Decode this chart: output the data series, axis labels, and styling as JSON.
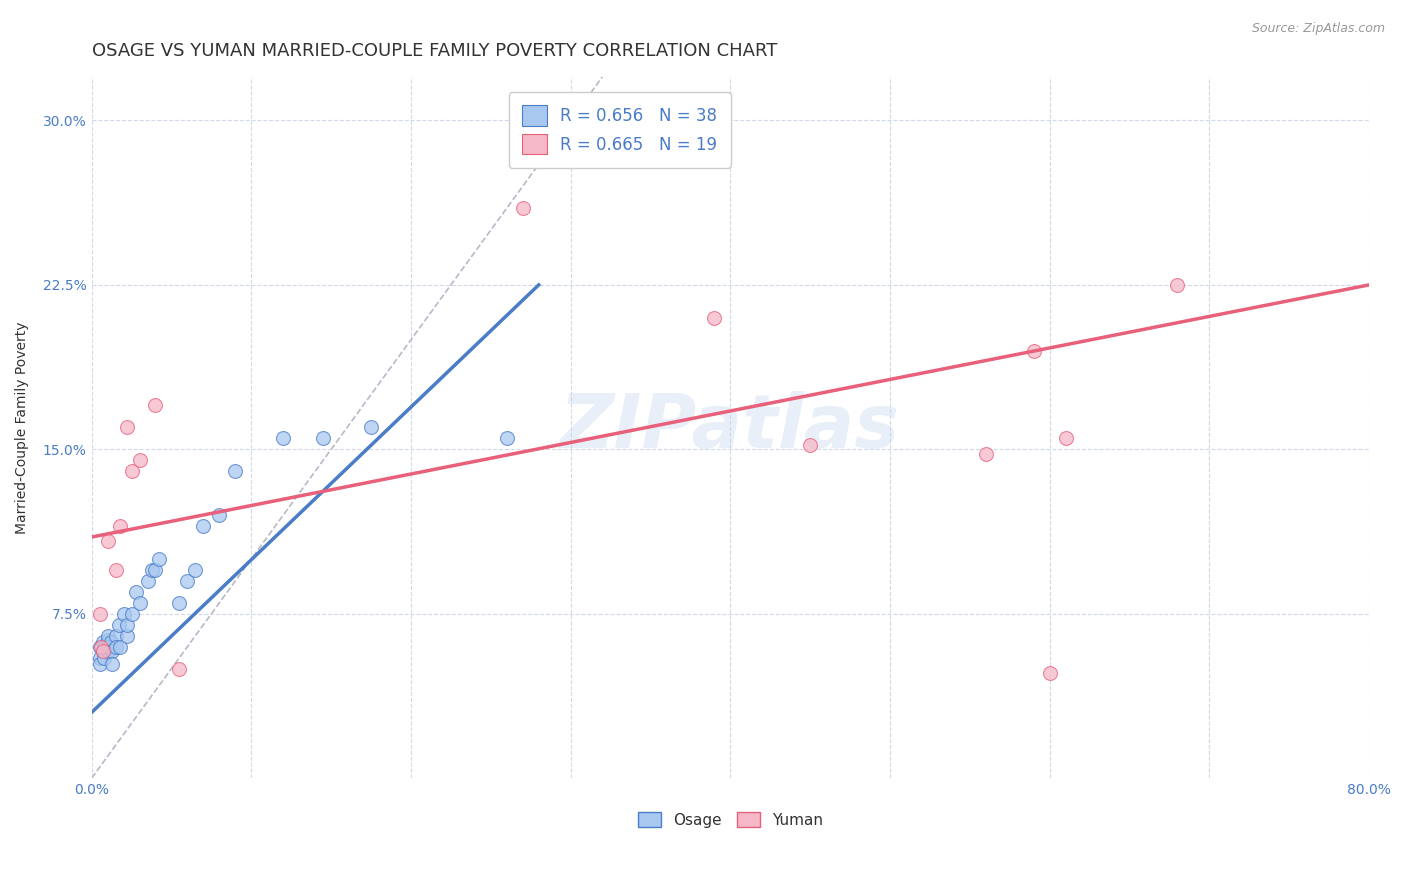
{
  "title": "OSAGE VS YUMAN MARRIED-COUPLE FAMILY POVERTY CORRELATION CHART",
  "xlabel": "",
  "ylabel": "Married-Couple Family Poverty",
  "source_text": "Source: ZipAtlas.com",
  "watermark": "ZIPatlas",
  "xlim": [
    0.0,
    0.8
  ],
  "ylim": [
    0.0,
    0.32
  ],
  "xticks": [
    0.0,
    0.1,
    0.2,
    0.3,
    0.4,
    0.5,
    0.6,
    0.7,
    0.8
  ],
  "xticklabels": [
    "0.0%",
    "",
    "",
    "",
    "",
    "",
    "",
    "",
    "80.0%"
  ],
  "yticks": [
    0.0,
    0.075,
    0.15,
    0.225,
    0.3
  ],
  "yticklabels": [
    "",
    "7.5%",
    "15.0%",
    "22.5%",
    "30.0%"
  ],
  "osage_color": "#a8c8f0",
  "yuman_color": "#f4b8c8",
  "osage_line_color": "#4a7cc7",
  "yuman_line_color": "#e8607a",
  "diagonal_color": "#b8b8c8",
  "legend_R_osage": "0.656",
  "legend_N_osage": "38",
  "legend_R_yuman": "0.665",
  "legend_N_yuman": "19",
  "osage_line_x0": 0.0,
  "osage_line_y0": 0.03,
  "osage_line_x1": 0.28,
  "osage_line_y1": 0.225,
  "yuman_line_x0": 0.0,
  "yuman_line_y0": 0.11,
  "yuman_line_x1": 0.8,
  "yuman_line_y1": 0.225,
  "osage_scatter_x": [
    0.005,
    0.005,
    0.005,
    0.007,
    0.007,
    0.008,
    0.008,
    0.01,
    0.01,
    0.01,
    0.01,
    0.012,
    0.013,
    0.013,
    0.015,
    0.015,
    0.017,
    0.018,
    0.02,
    0.022,
    0.022,
    0.025,
    0.028,
    0.03,
    0.035,
    0.038,
    0.04,
    0.042,
    0.055,
    0.06,
    0.065,
    0.07,
    0.08,
    0.09,
    0.12,
    0.145,
    0.175,
    0.26
  ],
  "osage_scatter_y": [
    0.06,
    0.055,
    0.052,
    0.058,
    0.062,
    0.06,
    0.055,
    0.058,
    0.063,
    0.065,
    0.06,
    0.062,
    0.058,
    0.052,
    0.065,
    0.06,
    0.07,
    0.06,
    0.075,
    0.065,
    0.07,
    0.075,
    0.085,
    0.08,
    0.09,
    0.095,
    0.095,
    0.1,
    0.08,
    0.09,
    0.095,
    0.115,
    0.12,
    0.14,
    0.155,
    0.155,
    0.16,
    0.155
  ],
  "yuman_scatter_x": [
    0.005,
    0.006,
    0.007,
    0.01,
    0.015,
    0.018,
    0.022,
    0.025,
    0.03,
    0.04,
    0.055,
    0.27,
    0.39,
    0.45,
    0.56,
    0.59,
    0.6,
    0.61,
    0.68
  ],
  "yuman_scatter_y": [
    0.075,
    0.06,
    0.058,
    0.108,
    0.095,
    0.115,
    0.16,
    0.14,
    0.145,
    0.17,
    0.05,
    0.26,
    0.21,
    0.152,
    0.148,
    0.195,
    0.048,
    0.155,
    0.225
  ],
  "background_color": "#ffffff",
  "grid_color": "#d0d8ea",
  "title_fontsize": 13,
  "axis_label_fontsize": 10,
  "tick_fontsize": 10,
  "legend_fontsize": 12,
  "source_fontsize": 9
}
